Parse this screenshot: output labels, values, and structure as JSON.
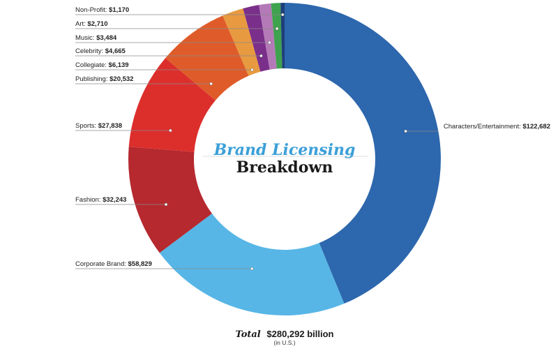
{
  "chart_data": {
    "type": "pie",
    "title_line1": "Brand Licensing",
    "title_line2": "Breakdown",
    "total_word": "Total",
    "total_value": "$280,292 billion",
    "total_note": "(in U.S.)",
    "slices": [
      {
        "label": "Characters/Entertainment:",
        "display": "$122,682",
        "value": 122682,
        "color": "#2d67ad"
      },
      {
        "label": "Corporate Brand:",
        "display": "$58,829",
        "value": 58829,
        "color": "#57b6e6"
      },
      {
        "label": "Fashion:",
        "display": "$32,243",
        "value": 32243,
        "color": "#b5292f"
      },
      {
        "label": "Sports:",
        "display": "$27,838",
        "value": 27838,
        "color": "#dc2f2c"
      },
      {
        "label": "Publishing:",
        "display": "$20,532",
        "value": 20532,
        "color": "#df5c2a"
      },
      {
        "label": "Collegiate:",
        "display": "$6,139",
        "value": 6139,
        "color": "#e89a40"
      },
      {
        "label": "Celebrity:",
        "display": "$4,665",
        "value": 4665,
        "color": "#7a2f8a"
      },
      {
        "label": "Music:",
        "display": "$3,484",
        "value": 3484,
        "color": "#b47ab8"
      },
      {
        "label": "Art:",
        "display": "$2,710",
        "value": 2710,
        "color": "#3fa24e"
      },
      {
        "label": "Non-Profit:",
        "display": "$1,170",
        "value": 1170,
        "color": "#1e3f7a"
      }
    ]
  }
}
